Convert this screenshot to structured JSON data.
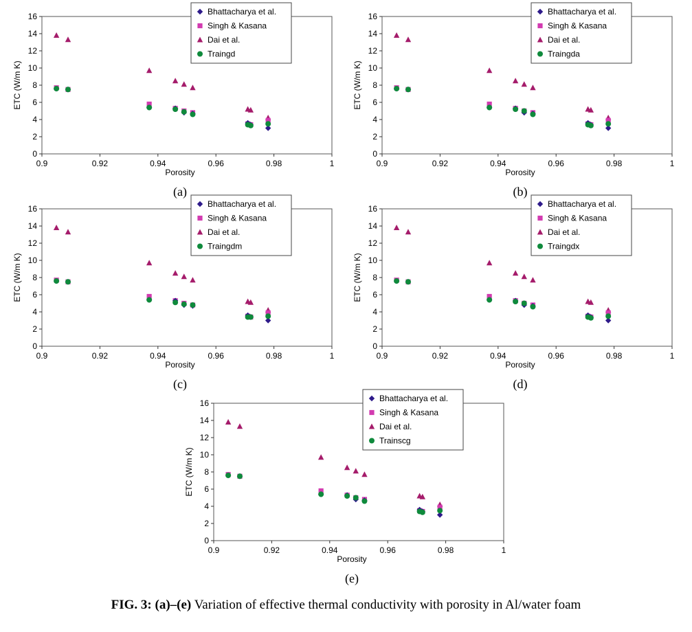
{
  "caption": {
    "fig_label": "FIG. 3:",
    "range_label": "(a)–(e)",
    "text": "Variation of effective thermal conductivity with porosity in Al/water foam"
  },
  "colors": {
    "bhattacharya": "#2e1a8a",
    "singh": "#d23bb0",
    "dai": "#a51c6b",
    "model": "#0f8a3c"
  },
  "chart_data": [
    {
      "type": "scatter",
      "panel_label": "(a)",
      "xlabel": "Porosity",
      "ylabel": "ETC (W/m K)",
      "xlim": [
        0.9,
        1
      ],
      "ylim": [
        0,
        16
      ],
      "xticks": [
        "0.9",
        "0.92",
        "0.94",
        "0.96",
        "0.98",
        "1"
      ],
      "yticks": [
        "0",
        "2",
        "4",
        "6",
        "8",
        "10",
        "12",
        "14",
        "16"
      ],
      "legend": "top-right",
      "series": [
        {
          "name": "Bhattacharya et al.",
          "marker": "diamond",
          "x": [
            0.905,
            0.909,
            0.937,
            0.946,
            0.949,
            0.952,
            0.971,
            0.972,
            0.978
          ],
          "y": [
            7.6,
            7.5,
            5.4,
            5.3,
            4.8,
            4.7,
            3.6,
            3.4,
            3.0
          ]
        },
        {
          "name": "Singh & Kasana",
          "marker": "square",
          "x": [
            0.905,
            0.909,
            0.937,
            0.946,
            0.949,
            0.952,
            0.971,
            0.972,
            0.978
          ],
          "y": [
            7.7,
            7.5,
            5.8,
            5.3,
            5.0,
            4.8,
            3.5,
            3.4,
            3.9
          ]
        },
        {
          "name": "Dai et al.",
          "marker": "triangle",
          "x": [
            0.905,
            0.909,
            0.937,
            0.946,
            0.949,
            0.952,
            0.971,
            0.972,
            0.978
          ],
          "y": [
            13.8,
            13.3,
            9.7,
            8.5,
            8.1,
            7.7,
            5.2,
            5.1,
            4.2
          ]
        },
        {
          "name": "Traingd",
          "marker": "circle",
          "x": [
            0.905,
            0.909,
            0.937,
            0.946,
            0.949,
            0.952,
            0.971,
            0.972,
            0.978
          ],
          "y": [
            7.6,
            7.5,
            5.4,
            5.2,
            4.9,
            4.6,
            3.4,
            3.3,
            3.5
          ]
        }
      ]
    },
    {
      "type": "scatter",
      "panel_label": "(b)",
      "xlabel": "Porosity",
      "ylabel": "ETC (W/m K)",
      "xlim": [
        0.9,
        1
      ],
      "ylim": [
        0,
        16
      ],
      "xticks": [
        "0.9",
        "0.92",
        "0.94",
        "0.96",
        "0.98",
        "1"
      ],
      "yticks": [
        "0",
        "2",
        "4",
        "6",
        "8",
        "10",
        "12",
        "14",
        "16"
      ],
      "legend": "top-right",
      "series": [
        {
          "name": "Bhattacharya et al.",
          "marker": "diamond",
          "x": [
            0.905,
            0.909,
            0.937,
            0.946,
            0.949,
            0.952,
            0.971,
            0.972,
            0.978
          ],
          "y": [
            7.6,
            7.5,
            5.4,
            5.3,
            4.8,
            4.7,
            3.6,
            3.4,
            3.0
          ]
        },
        {
          "name": "Singh & Kasana",
          "marker": "square",
          "x": [
            0.905,
            0.909,
            0.937,
            0.946,
            0.949,
            0.952,
            0.971,
            0.972,
            0.978
          ],
          "y": [
            7.7,
            7.5,
            5.8,
            5.3,
            5.0,
            4.8,
            3.5,
            3.4,
            3.9
          ]
        },
        {
          "name": "Dai et al.",
          "marker": "triangle",
          "x": [
            0.905,
            0.909,
            0.937,
            0.946,
            0.949,
            0.952,
            0.971,
            0.972,
            0.978
          ],
          "y": [
            13.8,
            13.3,
            9.7,
            8.5,
            8.1,
            7.7,
            5.2,
            5.1,
            4.2
          ]
        },
        {
          "name": "Traingda",
          "marker": "circle",
          "x": [
            0.905,
            0.909,
            0.937,
            0.946,
            0.949,
            0.952,
            0.971,
            0.972,
            0.978
          ],
          "y": [
            7.6,
            7.5,
            5.4,
            5.2,
            5.0,
            4.6,
            3.4,
            3.3,
            3.5
          ]
        }
      ]
    },
    {
      "type": "scatter",
      "panel_label": "(c)",
      "xlabel": "Porosity",
      "ylabel": "ETC (W/m K)",
      "xlim": [
        0.9,
        1
      ],
      "ylim": [
        0,
        16
      ],
      "xticks": [
        "0.9",
        "0.92",
        "0.94",
        "0.96",
        "0.98",
        "1"
      ],
      "yticks": [
        "0",
        "2",
        "4",
        "6",
        "8",
        "10",
        "12",
        "14",
        "16"
      ],
      "legend": "top-right",
      "series": [
        {
          "name": "Bhattacharya et al.",
          "marker": "diamond",
          "x": [
            0.905,
            0.909,
            0.937,
            0.946,
            0.949,
            0.952,
            0.971,
            0.972,
            0.978
          ],
          "y": [
            7.6,
            7.5,
            5.4,
            5.3,
            4.8,
            4.7,
            3.6,
            3.4,
            3.0
          ]
        },
        {
          "name": "Singh & Kasana",
          "marker": "square",
          "x": [
            0.905,
            0.909,
            0.937,
            0.946,
            0.949,
            0.952,
            0.971,
            0.972,
            0.978
          ],
          "y": [
            7.7,
            7.5,
            5.8,
            5.3,
            5.0,
            4.8,
            3.5,
            3.4,
            3.9
          ]
        },
        {
          "name": "Dai et al.",
          "marker": "triangle",
          "x": [
            0.905,
            0.909,
            0.937,
            0.946,
            0.949,
            0.952,
            0.971,
            0.972,
            0.978
          ],
          "y": [
            13.8,
            13.3,
            9.7,
            8.5,
            8.1,
            7.7,
            5.2,
            5.1,
            4.2
          ]
        },
        {
          "name": "Traingdm",
          "marker": "circle",
          "x": [
            0.905,
            0.909,
            0.937,
            0.946,
            0.949,
            0.952,
            0.971,
            0.972,
            0.978
          ],
          "y": [
            7.6,
            7.5,
            5.4,
            5.1,
            4.9,
            4.8,
            3.4,
            3.4,
            3.5
          ]
        }
      ]
    },
    {
      "type": "scatter",
      "panel_label": "(d)",
      "xlabel": "Porosity",
      "ylabel": "ETC (W/m K)",
      "xlim": [
        0.9,
        1
      ],
      "ylim": [
        0,
        16
      ],
      "xticks": [
        "0.9",
        "0.92",
        "0.94",
        "0.96",
        "0.98",
        "1"
      ],
      "yticks": [
        "0",
        "2",
        "4",
        "6",
        "8",
        "10",
        "12",
        "14",
        "16"
      ],
      "legend": "top-right",
      "series": [
        {
          "name": "Bhattacharya et al.",
          "marker": "diamond",
          "x": [
            0.905,
            0.909,
            0.937,
            0.946,
            0.949,
            0.952,
            0.971,
            0.972,
            0.978
          ],
          "y": [
            7.6,
            7.5,
            5.4,
            5.3,
            4.8,
            4.7,
            3.6,
            3.4,
            3.0
          ]
        },
        {
          "name": "Singh & Kasana",
          "marker": "square",
          "x": [
            0.905,
            0.909,
            0.937,
            0.946,
            0.949,
            0.952,
            0.971,
            0.972,
            0.978
          ],
          "y": [
            7.7,
            7.5,
            5.8,
            5.3,
            5.0,
            4.8,
            3.5,
            3.4,
            3.9
          ]
        },
        {
          "name": "Dai et al.",
          "marker": "triangle",
          "x": [
            0.905,
            0.909,
            0.937,
            0.946,
            0.949,
            0.952,
            0.971,
            0.972,
            0.978
          ],
          "y": [
            13.8,
            13.3,
            9.7,
            8.5,
            8.1,
            7.7,
            5.2,
            5.1,
            4.2
          ]
        },
        {
          "name": "Traingdx",
          "marker": "circle",
          "x": [
            0.905,
            0.909,
            0.937,
            0.946,
            0.949,
            0.952,
            0.971,
            0.972,
            0.978
          ],
          "y": [
            7.6,
            7.5,
            5.4,
            5.2,
            5.0,
            4.6,
            3.4,
            3.3,
            3.5
          ]
        }
      ]
    },
    {
      "type": "scatter",
      "panel_label": "(e)",
      "xlabel": "Porosity",
      "ylabel": "ETC (W/m K)",
      "xlim": [
        0.9,
        1
      ],
      "ylim": [
        0,
        16
      ],
      "xticks": [
        "0.9",
        "0.92",
        "0.94",
        "0.96",
        "0.98",
        "1"
      ],
      "yticks": [
        "0",
        "2",
        "4",
        "6",
        "8",
        "10",
        "12",
        "14",
        "16"
      ],
      "legend": "top-right",
      "series": [
        {
          "name": "Bhattacharya et al.",
          "marker": "diamond",
          "x": [
            0.905,
            0.909,
            0.937,
            0.946,
            0.949,
            0.952,
            0.971,
            0.972,
            0.978
          ],
          "y": [
            7.6,
            7.5,
            5.4,
            5.3,
            4.8,
            4.7,
            3.6,
            3.4,
            3.0
          ]
        },
        {
          "name": "Singh & Kasana",
          "marker": "square",
          "x": [
            0.905,
            0.909,
            0.937,
            0.946,
            0.949,
            0.952,
            0.971,
            0.972,
            0.978
          ],
          "y": [
            7.7,
            7.5,
            5.8,
            5.3,
            5.0,
            4.8,
            3.5,
            3.4,
            3.9
          ]
        },
        {
          "name": "Dai et al.",
          "marker": "triangle",
          "x": [
            0.905,
            0.909,
            0.937,
            0.946,
            0.949,
            0.952,
            0.971,
            0.972,
            0.978
          ],
          "y": [
            13.8,
            13.3,
            9.7,
            8.5,
            8.1,
            7.7,
            5.2,
            5.1,
            4.2
          ]
        },
        {
          "name": "Trainscg",
          "marker": "circle",
          "x": [
            0.905,
            0.909,
            0.937,
            0.946,
            0.949,
            0.952,
            0.971,
            0.972,
            0.978
          ],
          "y": [
            7.6,
            7.5,
            5.4,
            5.2,
            5.0,
            4.6,
            3.4,
            3.3,
            3.5
          ]
        }
      ]
    }
  ]
}
